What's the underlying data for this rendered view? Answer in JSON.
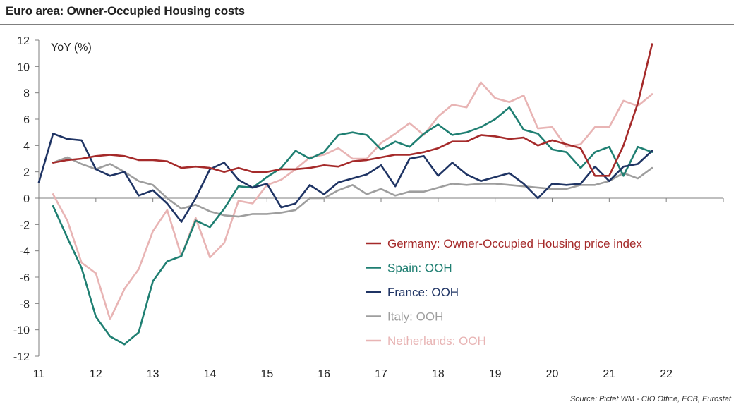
{
  "title": "Euro area: Owner-Occupied Housing costs",
  "source": "Source: Pictet WM - CIO Office, ECB, Eurostat",
  "chart_data": {
    "type": "line",
    "title": "Euro area: Owner-Occupied Housing costs",
    "ylabel": "YoY (%)",
    "xlabel": "",
    "ylim": [
      -12,
      12
    ],
    "xlim": [
      11,
      23
    ],
    "yticks": [
      12,
      10,
      8,
      6,
      4,
      2,
      0,
      -2,
      -4,
      -6,
      -8,
      -10,
      -12
    ],
    "xticks": [
      11,
      12,
      13,
      14,
      15,
      16,
      17,
      18,
      19,
      20,
      21,
      22
    ],
    "legend_position": "center-right",
    "series": [
      {
        "name": "Germany: Owner-Occupied Housing price index",
        "color": "#a52a2a",
        "x": [
          11.25,
          11.5,
          11.75,
          12.0,
          12.25,
          12.5,
          12.75,
          13.0,
          13.25,
          13.5,
          13.75,
          14.0,
          14.25,
          14.5,
          14.75,
          15.0,
          15.25,
          15.5,
          15.75,
          16.0,
          16.25,
          16.5,
          16.75,
          17.0,
          17.25,
          17.5,
          17.75,
          18.0,
          18.25,
          18.5,
          18.75,
          19.0,
          19.25,
          19.5,
          19.75,
          20.0,
          20.25,
          20.5,
          20.75,
          21.0,
          21.25,
          21.5,
          21.75
        ],
        "y": [
          2.7,
          2.9,
          3.0,
          3.2,
          3.3,
          3.2,
          2.9,
          2.9,
          2.8,
          2.3,
          2.4,
          2.3,
          2.0,
          2.3,
          2.0,
          2.0,
          2.2,
          2.2,
          2.3,
          2.5,
          2.4,
          2.8,
          2.9,
          3.1,
          3.3,
          3.3,
          3.5,
          3.8,
          4.3,
          4.3,
          4.8,
          4.7,
          4.5,
          4.6,
          4.0,
          4.4,
          4.1,
          3.8,
          1.7,
          1.7,
          4.0,
          7.2,
          11.7
        ]
      },
      {
        "name": "Spain: OOH",
        "color": "#1f7f72",
        "x": [
          11.25,
          11.5,
          11.75,
          12.0,
          12.25,
          12.5,
          12.75,
          13.0,
          13.25,
          13.5,
          13.75,
          14.0,
          14.25,
          14.5,
          14.75,
          15.0,
          15.25,
          15.5,
          15.75,
          16.0,
          16.25,
          16.5,
          16.75,
          17.0,
          17.25,
          17.5,
          17.75,
          18.0,
          18.25,
          18.5,
          18.75,
          19.0,
          19.25,
          19.5,
          19.75,
          20.0,
          20.25,
          20.5,
          20.75,
          21.0,
          21.25,
          21.5,
          21.75
        ],
        "y": [
          -0.6,
          -3.0,
          -5.3,
          -9.0,
          -10.5,
          -11.1,
          -10.2,
          -6.3,
          -4.8,
          -4.4,
          -1.7,
          -2.2,
          -0.8,
          0.9,
          0.8,
          1.6,
          2.3,
          3.6,
          3.0,
          3.5,
          4.8,
          5.0,
          4.8,
          3.7,
          4.3,
          3.9,
          4.9,
          5.6,
          4.8,
          5.0,
          5.4,
          6.0,
          6.9,
          5.2,
          4.9,
          3.7,
          3.5,
          2.3,
          3.5,
          3.9,
          1.7,
          3.9,
          3.5
        ]
      },
      {
        "name": "France: OOH",
        "color": "#1f3464",
        "x": [
          11.0,
          11.25,
          11.5,
          11.75,
          12.0,
          12.25,
          12.5,
          12.75,
          13.0,
          13.25,
          13.5,
          13.75,
          14.0,
          14.25,
          14.5,
          14.75,
          15.0,
          15.25,
          15.5,
          15.75,
          16.0,
          16.25,
          16.5,
          16.75,
          17.0,
          17.25,
          17.5,
          17.75,
          18.0,
          18.25,
          18.5,
          18.75,
          19.0,
          19.25,
          19.5,
          19.75,
          20.0,
          20.25,
          20.5,
          20.75,
          21.0,
          21.25,
          21.5,
          21.75
        ],
        "y": [
          1.2,
          4.9,
          4.5,
          4.4,
          2.2,
          1.7,
          2.0,
          0.2,
          0.6,
          -0.4,
          -1.8,
          0.0,
          2.2,
          2.7,
          1.4,
          0.8,
          1.1,
          -0.7,
          -0.4,
          1.0,
          0.3,
          1.2,
          1.5,
          1.8,
          2.5,
          0.9,
          3.0,
          3.2,
          1.7,
          2.7,
          1.8,
          1.3,
          1.6,
          1.9,
          1.1,
          0.0,
          1.1,
          1.0,
          1.1,
          2.4,
          1.3,
          2.4,
          2.6,
          3.6
        ]
      },
      {
        "name": "Italy: OOH",
        "color": "#9e9e9e",
        "x": [
          11.25,
          11.5,
          11.75,
          12.0,
          12.25,
          12.5,
          12.75,
          13.0,
          13.25,
          13.5,
          13.75,
          14.0,
          14.25,
          14.5,
          14.75,
          15.0,
          15.25,
          15.5,
          15.75,
          16.0,
          16.25,
          16.5,
          16.75,
          17.0,
          17.25,
          17.5,
          17.75,
          18.0,
          18.25,
          18.5,
          18.75,
          19.0,
          19.25,
          19.5,
          19.75,
          20.0,
          20.25,
          20.5,
          20.75,
          21.0,
          21.25,
          21.5,
          21.75
        ],
        "y": [
          2.7,
          3.1,
          2.6,
          2.2,
          2.6,
          2.0,
          1.3,
          1.0,
          0.0,
          -0.8,
          -0.5,
          -1.0,
          -1.3,
          -1.4,
          -1.2,
          -1.2,
          -1.1,
          -0.9,
          0.0,
          0.0,
          0.6,
          1.0,
          0.3,
          0.7,
          0.2,
          0.5,
          0.5,
          0.8,
          1.1,
          1.0,
          1.1,
          1.1,
          1.0,
          0.9,
          0.8,
          0.7,
          0.7,
          1.0,
          1.0,
          1.3,
          1.9,
          1.5,
          2.3
        ]
      },
      {
        "name": "Netherlands: OOH",
        "color": "#e8b4b4",
        "x": [
          11.25,
          11.5,
          11.75,
          12.0,
          12.25,
          12.5,
          12.75,
          13.0,
          13.25,
          13.5,
          13.75,
          14.0,
          14.25,
          14.5,
          14.75,
          15.0,
          15.25,
          15.5,
          15.75,
          16.0,
          16.25,
          16.5,
          16.75,
          17.0,
          17.25,
          17.5,
          17.75,
          18.0,
          18.25,
          18.5,
          18.75,
          19.0,
          19.25,
          19.5,
          19.75,
          20.0,
          20.25,
          20.5,
          20.75,
          21.0,
          21.25,
          21.5,
          21.75
        ],
        "y": [
          0.3,
          -1.7,
          -4.9,
          -5.7,
          -9.2,
          -6.9,
          -5.4,
          -2.5,
          -0.9,
          -4.4,
          -1.5,
          -4.5,
          -3.4,
          -0.2,
          -0.4,
          1.0,
          1.4,
          2.2,
          3.1,
          3.3,
          3.8,
          3.0,
          3.0,
          4.2,
          4.9,
          5.7,
          4.8,
          6.2,
          7.1,
          6.9,
          8.8,
          7.6,
          7.3,
          7.8,
          5.3,
          5.4,
          3.9,
          4.1,
          5.4,
          5.4,
          7.4,
          7.0,
          7.9
        ]
      }
    ]
  }
}
